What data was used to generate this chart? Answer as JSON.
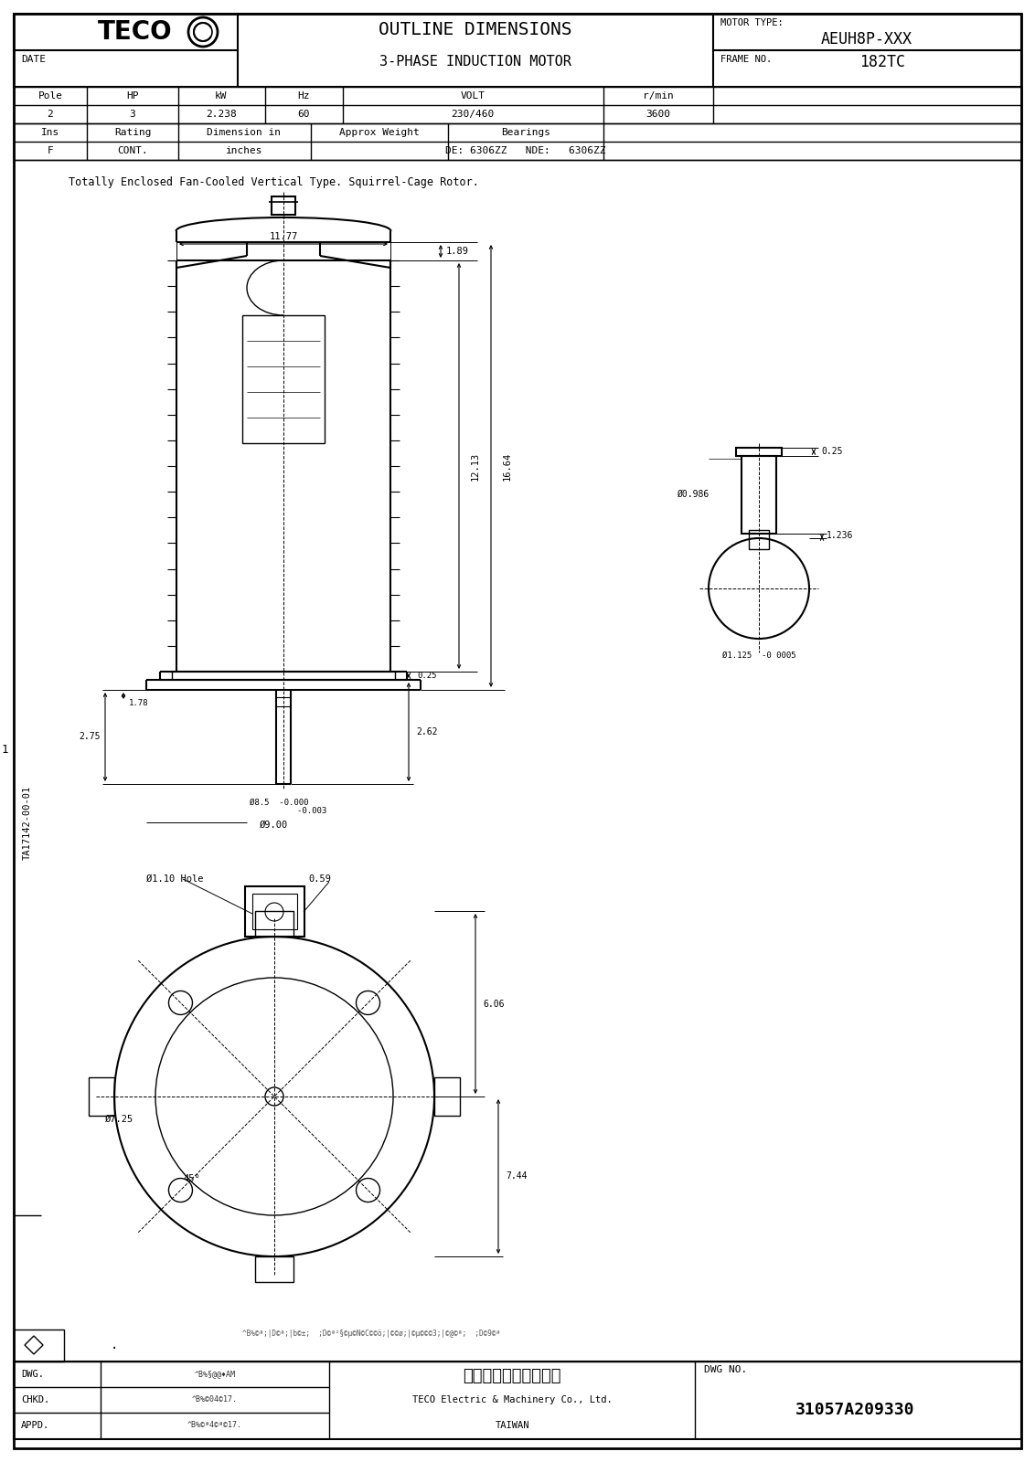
{
  "bg_color": "#ffffff",
  "line_color": "#000000",
  "title_text": "OUTLINE DIMENSIONS",
  "subtitle_text": "3-PHASE INDUCTION MOTOR",
  "motor_type_label": "MOTOR TYPE:",
  "motor_type_val": "AEUH8P-XXX",
  "frame_label": "FRAME NO.",
  "frame_val": "182TC",
  "date_label": "DATE",
  "table1_headers": [
    "Pole",
    "HP",
    "kW",
    "Hz",
    "VOLT",
    "r/min"
  ],
  "table1_values": [
    "2",
    "3",
    "2.238",
    "60",
    "230/460",
    "3600"
  ],
  "table2_headers": [
    "Ins",
    "Rating",
    "Dimension in",
    "Approx Weight",
    "Bearings"
  ],
  "table2_values": [
    "F",
    "CONT.",
    "inches",
    "",
    "DE: 6306ZZ   NDE:   6306ZZ"
  ],
  "desc_text": "Totally Enclosed Fan-Cooled Vertical Type. Squirrel-Cage Rotor.",
  "dwg_label": "DWG.",
  "chkd_label": "CHKD.",
  "appd_label": "APPD.",
  "dwg_no_label": "DWG NO.",
  "dwg_no_val": "31057A209330",
  "company_cn": "東元電機股份有限公司",
  "company_en": "TECO Electric & Machinery Co., Ltd.",
  "company_loc": "TAIWAN",
  "drawing_no": "TA17142-00-01",
  "rev_text": "^B%§@@♦AM",
  "rev_text2": "^B%©04©17.",
  "noise_text": "^B%©ª4©ª©17.",
  "bottom_noise": "^B%©ª;|D©ª;|b©±;  ;D©ª²§©µ©N©C©©ö;|©©ø;|©µ©©©3;|©@©ª;  ;D©9©ª"
}
